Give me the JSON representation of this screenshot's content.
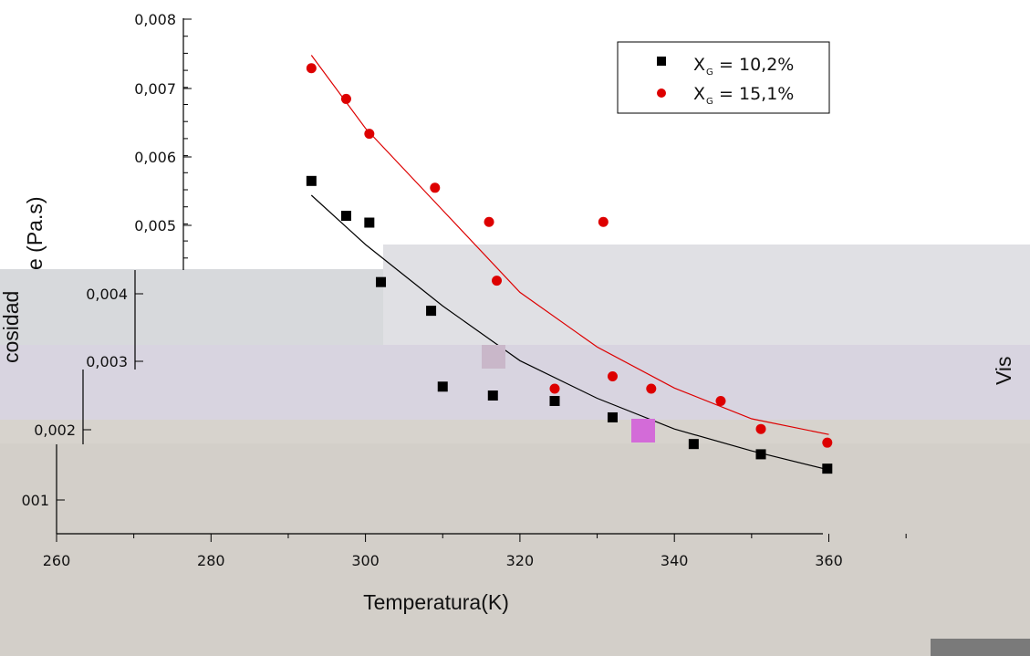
{
  "chart_data": {
    "type": "scatter",
    "xlabel": "Temperatura(K)",
    "ylabel": "Viscosidade (Pa.s)",
    "ylabel_fragments": {
      "top": "e (Pa.s)",
      "middle": "cosidad",
      "right": "Vis"
    },
    "xlim": [
      260,
      370
    ],
    "ylim": [
      0.0,
      0.008
    ],
    "x_ticks": [
      "260",
      "280",
      "300",
      "320",
      "340",
      "360"
    ],
    "y_ticks": [
      "001",
      "0,002",
      "0,003",
      "0,004",
      "0,005",
      "0,006",
      "0,007",
      "0,008"
    ],
    "grid": false,
    "legend_position": "top-right",
    "series": [
      {
        "name": "X_G = 10,2%",
        "legend_main": "X",
        "legend_sub": "G",
        "legend_tail": " = 10,2%",
        "marker": "square",
        "color": "#000000",
        "points": [
          [
            293,
            0.00563
          ],
          [
            297.5,
            0.00512
          ],
          [
            300.5,
            0.00502
          ],
          [
            302,
            0.00415
          ],
          [
            308.5,
            0.00373
          ],
          [
            310,
            0.00262
          ],
          [
            316.5,
            0.00249
          ],
          [
            324.5,
            0.00241
          ],
          [
            332,
            0.00217
          ],
          [
            336.8,
            0.002
          ],
          [
            342.5,
            0.00178
          ],
          [
            351.2,
            0.00163
          ],
          [
            359.8,
            0.00142
          ]
        ],
        "fit": [
          [
            293,
            0.00542
          ],
          [
            300,
            0.0047
          ],
          [
            310,
            0.0038
          ],
          [
            320,
            0.003
          ],
          [
            330,
            0.00245
          ],
          [
            340,
            0.002
          ],
          [
            350,
            0.00168
          ],
          [
            360,
            0.0014
          ]
        ]
      },
      {
        "name": "X_G = 15,1%",
        "legend_main": "X",
        "legend_sub": "G",
        "legend_tail": " = 15,1%",
        "marker": "circle",
        "color": "#dd0000",
        "points": [
          [
            293,
            0.00728
          ],
          [
            297.5,
            0.00683
          ],
          [
            300.5,
            0.00632
          ],
          [
            309,
            0.00553
          ],
          [
            316,
            0.00503
          ],
          [
            330.8,
            0.00503
          ],
          [
            317,
            0.00417
          ],
          [
            324.5,
            0.00259
          ],
          [
            332,
            0.00277
          ],
          [
            337,
            0.00259
          ],
          [
            346,
            0.00241
          ],
          [
            351.2,
            0.002
          ],
          [
            359.8,
            0.0018
          ]
        ],
        "fit": [
          [
            293,
            0.00747
          ],
          [
            300,
            0.0064
          ],
          [
            310,
            0.0052
          ],
          [
            320,
            0.004
          ],
          [
            330,
            0.0032
          ],
          [
            340,
            0.0026
          ],
          [
            350,
            0.00215
          ],
          [
            360,
            0.00192
          ]
        ]
      }
    ]
  },
  "bands": [
    {
      "color": "#e0e0e4"
    },
    {
      "color": "#d7d9dc"
    },
    {
      "color": "#d8d4e0"
    },
    {
      "color": "#d7d3cd"
    },
    {
      "color": "#d3cfc9"
    }
  ]
}
